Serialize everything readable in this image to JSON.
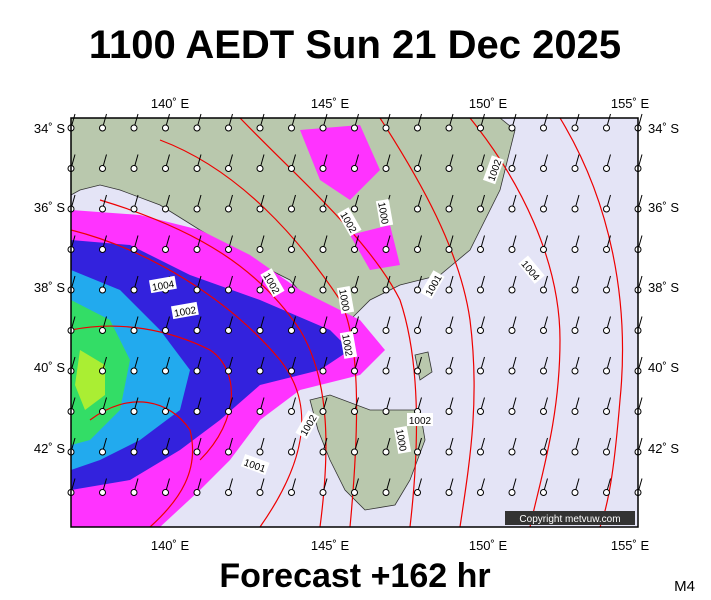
{
  "header": {
    "title": "1100 AEDT Sun 21 Dec 2025"
  },
  "map": {
    "lon_labels": [
      "140˚ E",
      "145˚ E",
      "150˚ E",
      "155˚ E"
    ],
    "lat_labels": [
      "34˚ S",
      "36˚ S",
      "38˚ S",
      "40˚ S",
      "42˚ S"
    ],
    "contour_labels": [
      "1004",
      "1002",
      "1002",
      "1000",
      "1002",
      "1002",
      "1000",
      "1002",
      "1004",
      "1001",
      "1002",
      "1002",
      "1000",
      "1001"
    ],
    "copyright": "Copyright metvuw.com"
  },
  "footer": {
    "forecast": "Forecast +162 hr",
    "model": "M4"
  }
}
